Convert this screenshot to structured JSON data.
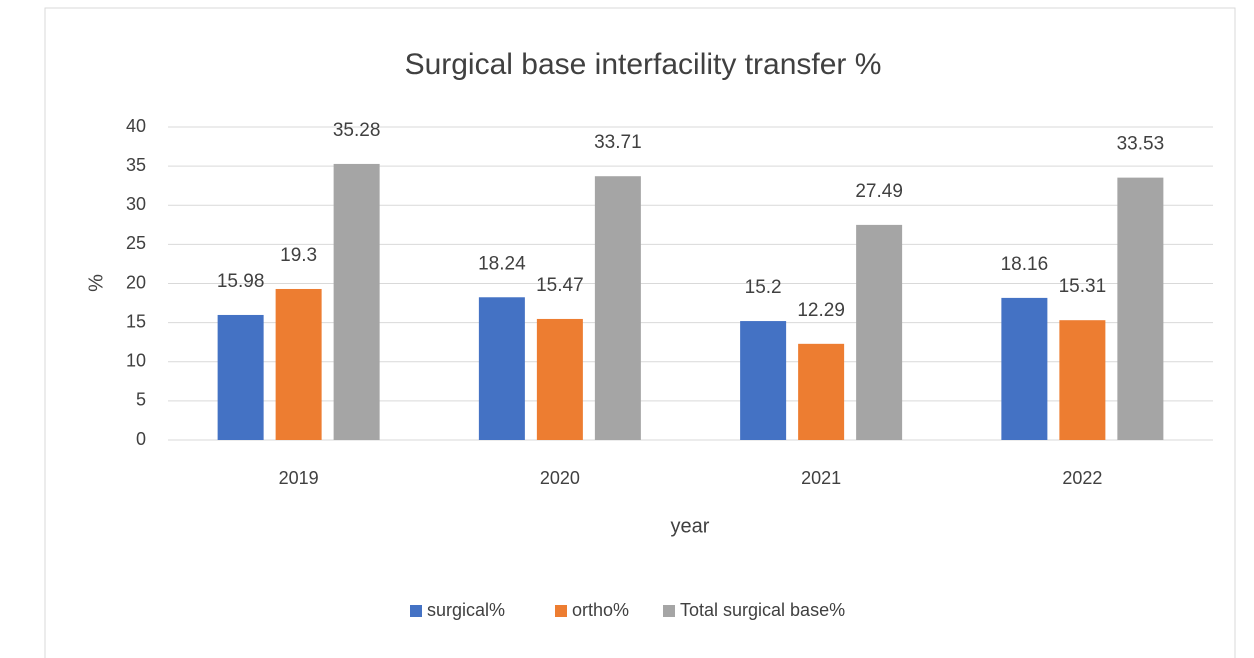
{
  "chart_data": {
    "type": "bar",
    "title": "Surgical base interfacility transfer %",
    "xlabel": "year",
    "ylabel": "%",
    "categories": [
      "2019",
      "2020",
      "2021",
      "2022"
    ],
    "series": [
      {
        "name": "surgical%",
        "color": "#4472c4",
        "values": [
          15.98,
          18.24,
          15.2,
          18.16
        ]
      },
      {
        "name": "ortho%",
        "color": "#ed7d31",
        "values": [
          19.3,
          15.47,
          12.29,
          15.31
        ]
      },
      {
        "name": "Total surgical base%",
        "color": "#a5a5a5",
        "values": [
          35.28,
          33.71,
          27.49,
          33.53
        ]
      }
    ],
    "ylim": [
      0,
      40
    ],
    "yticks": [
      0,
      5,
      10,
      15,
      20,
      25,
      30,
      35,
      40
    ],
    "grid": true,
    "legend": "bottom"
  }
}
